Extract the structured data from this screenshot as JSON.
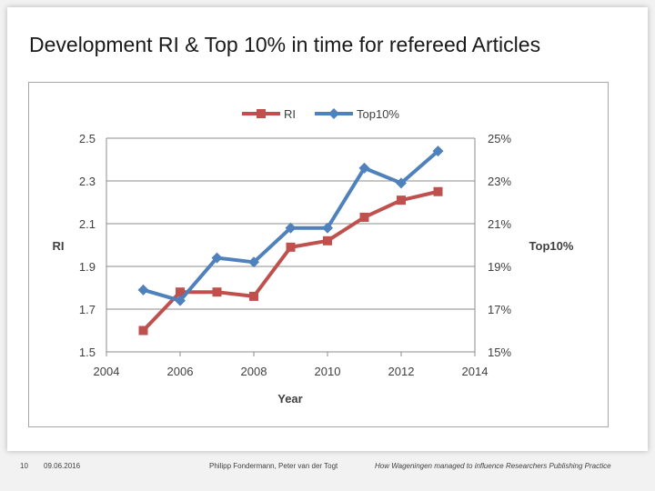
{
  "slide": {
    "title": "Development RI & Top 10% in time for refereed Articles"
  },
  "footer": {
    "page_number": "10",
    "date": "09.06.2016",
    "authors": "Philipp Fondermann, Peter van der Togt",
    "presentation_title": "How Wageningen managed to influence Researchers Publishing Practice"
  },
  "chart_data": {
    "type": "line",
    "title": "",
    "xlabel": "Year",
    "ylabel": "RI",
    "y2label": "Top10%",
    "xlim": [
      2004,
      2014
    ],
    "xticks": [
      "2004",
      "2006",
      "2008",
      "2010",
      "2012",
      "2014"
    ],
    "ylim": [
      1.5,
      2.5
    ],
    "yticks": [
      "1.5",
      "1.7",
      "1.9",
      "2.1",
      "2.3",
      "2.5"
    ],
    "y2lim": [
      0.15,
      0.25
    ],
    "y2ticks": [
      "15%",
      "17%",
      "19%",
      "21%",
      "23%",
      "25%"
    ],
    "grid": "horizontal",
    "legend_position": "top",
    "series": [
      {
        "name": "RI",
        "axis": "left",
        "color": "#c0504d",
        "marker": "square",
        "x": [
          2005,
          2006,
          2007,
          2008,
          2009,
          2010,
          2011,
          2012,
          2013
        ],
        "y": [
          1.6,
          1.78,
          1.78,
          1.76,
          1.99,
          2.02,
          2.13,
          2.21,
          2.25
        ]
      },
      {
        "name": "Top10%",
        "axis": "right",
        "color": "#4f81bd",
        "marker": "diamond",
        "x": [
          2005,
          2006,
          2007,
          2008,
          2009,
          2010,
          2011,
          2012,
          2013
        ],
        "y": [
          0.179,
          0.174,
          0.194,
          0.192,
          0.208,
          0.208,
          0.236,
          0.229,
          0.244
        ]
      }
    ]
  }
}
